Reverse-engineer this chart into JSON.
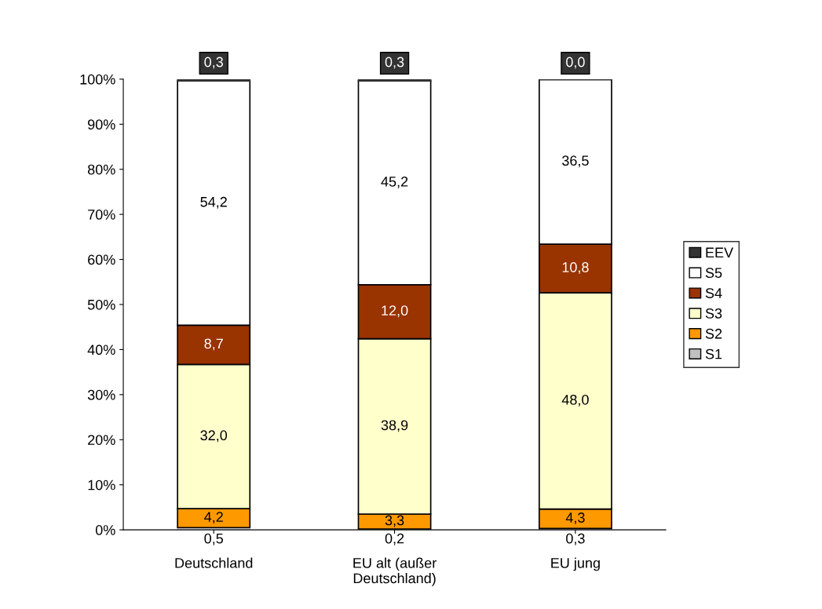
{
  "chart_data": {
    "type": "bar",
    "stacked": true,
    "categories": [
      "Deutschland",
      "EU alt (außer Deutschland)",
      "EU jung"
    ],
    "series": [
      {
        "name": "S1",
        "color": "#c0c0c0",
        "values": [
          0.5,
          0.2,
          0.3
        ],
        "value_labels": [
          "0,5",
          "0,2",
          "0,3"
        ]
      },
      {
        "name": "S2",
        "color": "#ff9900",
        "values": [
          4.2,
          3.3,
          4.3
        ],
        "value_labels": [
          "4,2",
          "3,3",
          "4,3"
        ]
      },
      {
        "name": "S3",
        "color": "#ffffcc",
        "values": [
          32.0,
          38.9,
          48.0
        ],
        "value_labels": [
          "32,0",
          "38,9",
          "48,0"
        ]
      },
      {
        "name": "S4",
        "color": "#993300",
        "values": [
          8.7,
          12.0,
          10.8
        ],
        "value_labels": [
          "8,7",
          "12,0",
          "10,8"
        ]
      },
      {
        "name": "S5",
        "color": "#ffffff",
        "values": [
          54.2,
          45.2,
          36.5
        ],
        "value_labels": [
          "54,2",
          "45,2",
          "36,5"
        ]
      },
      {
        "name": "EEV",
        "color": "#333333",
        "values": [
          0.3,
          0.3,
          0.0
        ],
        "value_labels": [
          "0,3",
          "0,3",
          "0,0"
        ]
      }
    ],
    "ylim": [
      0,
      100
    ],
    "yticks": [
      {
        "value": 0,
        "label": "0%"
      },
      {
        "value": 10,
        "label": "10%"
      },
      {
        "value": 20,
        "label": "20%"
      },
      {
        "value": 30,
        "label": "30%"
      },
      {
        "value": 40,
        "label": "40%"
      },
      {
        "value": 50,
        "label": "50%"
      },
      {
        "value": 60,
        "label": "60%"
      },
      {
        "value": 70,
        "label": "70%"
      },
      {
        "value": 80,
        "label": "80%"
      },
      {
        "value": 90,
        "label": "90%"
      },
      {
        "value": 100,
        "label": "100%"
      }
    ],
    "grid": false,
    "legend": "right"
  }
}
